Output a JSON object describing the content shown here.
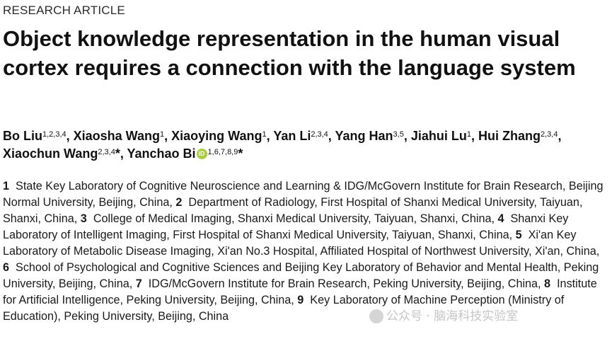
{
  "article_type": "RESEARCH ARTICLE",
  "title": "Object knowledge representation in the human visual cortex requires a connection with the language system",
  "authors": [
    {
      "name": "Bo Liu",
      "aff": "1,2,3,4",
      "sep": ", "
    },
    {
      "name": "Xiaosha Wang",
      "aff": "1",
      "sep": ", "
    },
    {
      "name": "Xiaoying Wang",
      "aff": "1",
      "sep": ", "
    },
    {
      "name": "Yan Li",
      "aff": "2,3,4",
      "sep": ", "
    },
    {
      "name": "Yang Han",
      "aff": "3,5",
      "sep": ", "
    },
    {
      "name": "Jiahui Lu",
      "aff": "1",
      "sep": ", "
    },
    {
      "name": "Hui Zhang",
      "aff": "2,3,4",
      "sep": ", "
    },
    {
      "name": "Xiaochun Wang",
      "aff": "2,3,4",
      "suffix": "*",
      "sep": ", "
    },
    {
      "name": "Yanchao Bi",
      "aff": "1,6,7,8,9",
      "suffix": "*",
      "orcid": true,
      "sep": ""
    }
  ],
  "orcid_label": "iD",
  "affiliations": [
    {
      "num": "1",
      "text": "State Key Laboratory of Cognitive Neuroscience and Learning & IDG/McGovern Institute for Brain Research, Beijing Normal University, Beijing, China"
    },
    {
      "num": "2",
      "text": "Department of Radiology, First Hospital of Shanxi Medical University, Taiyuan, Shanxi, China"
    },
    {
      "num": "3",
      "text": "College of Medical Imaging, Shanxi Medical University, Taiyuan, Shanxi, China"
    },
    {
      "num": "4",
      "text": "Shanxi Key Laboratory of Intelligent Imaging, First Hospital of Shanxi Medical University, Taiyuan, Shanxi, China"
    },
    {
      "num": "5",
      "text": "Xi'an Key Laboratory of Metabolic Disease Imaging, Xi'an No.3 Hospital, Affiliated Hospital of Northwest University, Xi'an, China"
    },
    {
      "num": "6",
      "text": "School of Psychological and Cognitive Sciences and Beijing Key Laboratory of Behavior and Mental Health, Peking University, Beijing, China"
    },
    {
      "num": "7",
      "text": "IDG/McGovern Institute for Brain Research, Peking University, Beijing, China"
    },
    {
      "num": "8",
      "text": "Institute for Artificial Intelligence, Peking University, Beijing, China"
    },
    {
      "num": "9",
      "text": "Key Laboratory of Machine Perception (Ministry of Education), Peking University, Beijing, China"
    }
  ],
  "watermark": "公众号 · 脑海科技实验室"
}
